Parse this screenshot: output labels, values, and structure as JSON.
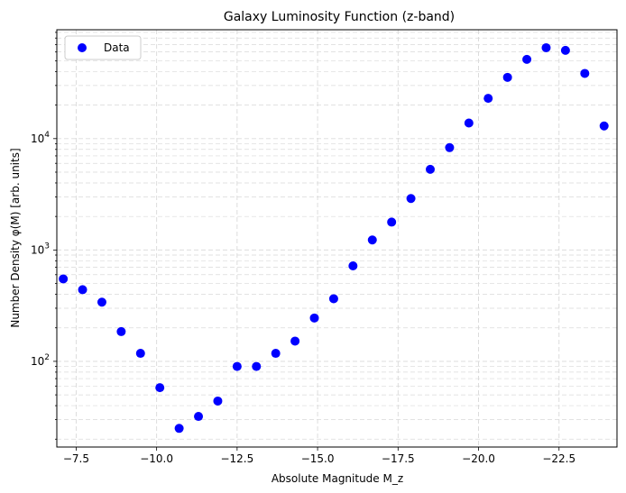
{
  "chart_data": {
    "type": "scatter",
    "title": "Galaxy Luminosity Function (z-band)",
    "xlabel": "Absolute Magnitude M_z",
    "ylabel": "Number Density φ(M) [arb. units]",
    "x_inverted": true,
    "xlim": [
      -6.9,
      -24.3
    ],
    "ylim": [
      17,
      95000
    ],
    "yscale": "log",
    "grid": true,
    "grid_style": "dashed",
    "legend_position": "top-left",
    "x_ticks": [
      {
        "value": -7.5,
        "label": "−7.5"
      },
      {
        "value": -10.0,
        "label": "−10.0"
      },
      {
        "value": -12.5,
        "label": "−12.5"
      },
      {
        "value": -15.0,
        "label": "−15.0"
      },
      {
        "value": -17.5,
        "label": "−17.5"
      },
      {
        "value": -20.0,
        "label": "−20.0"
      },
      {
        "value": -22.5,
        "label": "−22.5"
      }
    ],
    "y_ticks": [
      {
        "value": 100,
        "base": "10",
        "exp": "2"
      },
      {
        "value": 1000,
        "base": "10",
        "exp": "3"
      },
      {
        "value": 10000,
        "base": "10",
        "exp": "4"
      }
    ],
    "series": [
      {
        "name": "Data",
        "color": "#0000ff",
        "x": [
          -7.1,
          -7.7,
          -8.3,
          -8.9,
          -9.5,
          -10.1,
          -10.7,
          -11.3,
          -11.9,
          -12.5,
          -13.1,
          -13.7,
          -14.3,
          -14.9,
          -15.5,
          -16.1,
          -16.7,
          -17.3,
          -17.9,
          -18.5,
          -19.1,
          -19.7,
          -20.3,
          -20.9,
          -21.5,
          -22.1,
          -22.7,
          -23.3,
          -23.9
        ],
        "y": [
          550,
          440,
          340,
          185,
          118,
          58,
          25,
          32,
          44,
          90,
          90,
          118,
          152,
          245,
          365,
          720,
          1230,
          1780,
          2900,
          5300,
          8300,
          13800,
          23000,
          35500,
          51500,
          65500,
          62000,
          38500,
          13000
        ]
      }
    ]
  }
}
